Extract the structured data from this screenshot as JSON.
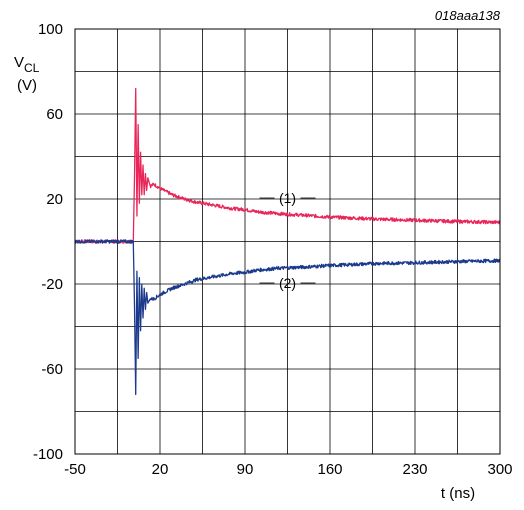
{
  "chart_data": {
    "type": "line",
    "reference": "018aaa138",
    "ylabel_main": "V",
    "ylabel_sub": "CL",
    "ylabel_unit": "(V)",
    "xlabel": "t (ns)",
    "xlim": [
      -50,
      300
    ],
    "ylim": [
      -100,
      100
    ],
    "x_ticks": [
      -50,
      20,
      90,
      160,
      230,
      300
    ],
    "y_ticks": [
      -100,
      -60,
      -20,
      20,
      60,
      100
    ],
    "grid": true,
    "series": [
      {
        "label": "(1)",
        "color": "#e8265a",
        "points": [
          [
            -50,
            0
          ],
          [
            -2,
            0
          ],
          [
            -1,
            30
          ],
          [
            0,
            72
          ],
          [
            1,
            12
          ],
          [
            2,
            55
          ],
          [
            3,
            18
          ],
          [
            4,
            42
          ],
          [
            5,
            22
          ],
          [
            6,
            36
          ],
          [
            7,
            22
          ],
          [
            8,
            32
          ],
          [
            9,
            24
          ],
          [
            10,
            30
          ],
          [
            12,
            26
          ],
          [
            15,
            27
          ],
          [
            20,
            25
          ],
          [
            30,
            22
          ],
          [
            40,
            20
          ],
          [
            50,
            18.5
          ],
          [
            60,
            17.5
          ],
          [
            70,
            16.5
          ],
          [
            80,
            15.5
          ],
          [
            90,
            15
          ],
          [
            100,
            14
          ],
          [
            110,
            13.5
          ],
          [
            120,
            13
          ],
          [
            140,
            12.3
          ],
          [
            160,
            11.5
          ],
          [
            180,
            11
          ],
          [
            200,
            10.5
          ],
          [
            230,
            10
          ],
          [
            260,
            9.5
          ],
          [
            300,
            9
          ]
        ]
      },
      {
        "label": "(2)",
        "color": "#1c3a8c",
        "points": [
          [
            -50,
            0
          ],
          [
            -2,
            0
          ],
          [
            -1,
            -30
          ],
          [
            0,
            -72
          ],
          [
            1,
            -14
          ],
          [
            2,
            -55
          ],
          [
            3,
            -17
          ],
          [
            4,
            -42
          ],
          [
            5,
            -20
          ],
          [
            6,
            -36
          ],
          [
            7,
            -22
          ],
          [
            8,
            -32
          ],
          [
            9,
            -24
          ],
          [
            10,
            -29
          ],
          [
            12,
            -27
          ],
          [
            15,
            -27
          ],
          [
            20,
            -25
          ],
          [
            30,
            -22
          ],
          [
            40,
            -20
          ],
          [
            50,
            -18
          ],
          [
            60,
            -17
          ],
          [
            70,
            -16
          ],
          [
            80,
            -15
          ],
          [
            90,
            -14.5
          ],
          [
            100,
            -13.5
          ],
          [
            110,
            -13
          ],
          [
            120,
            -12.5
          ],
          [
            140,
            -12
          ],
          [
            160,
            -11.3
          ],
          [
            180,
            -10.8
          ],
          [
            200,
            -10.3
          ],
          [
            230,
            -10
          ],
          [
            260,
            -9.5
          ],
          [
            300,
            -9
          ]
        ]
      }
    ],
    "annotations": [
      {
        "text": "(1)",
        "x": 125,
        "y": 20
      },
      {
        "text": "(2)",
        "x": 125,
        "y": -20
      }
    ]
  }
}
